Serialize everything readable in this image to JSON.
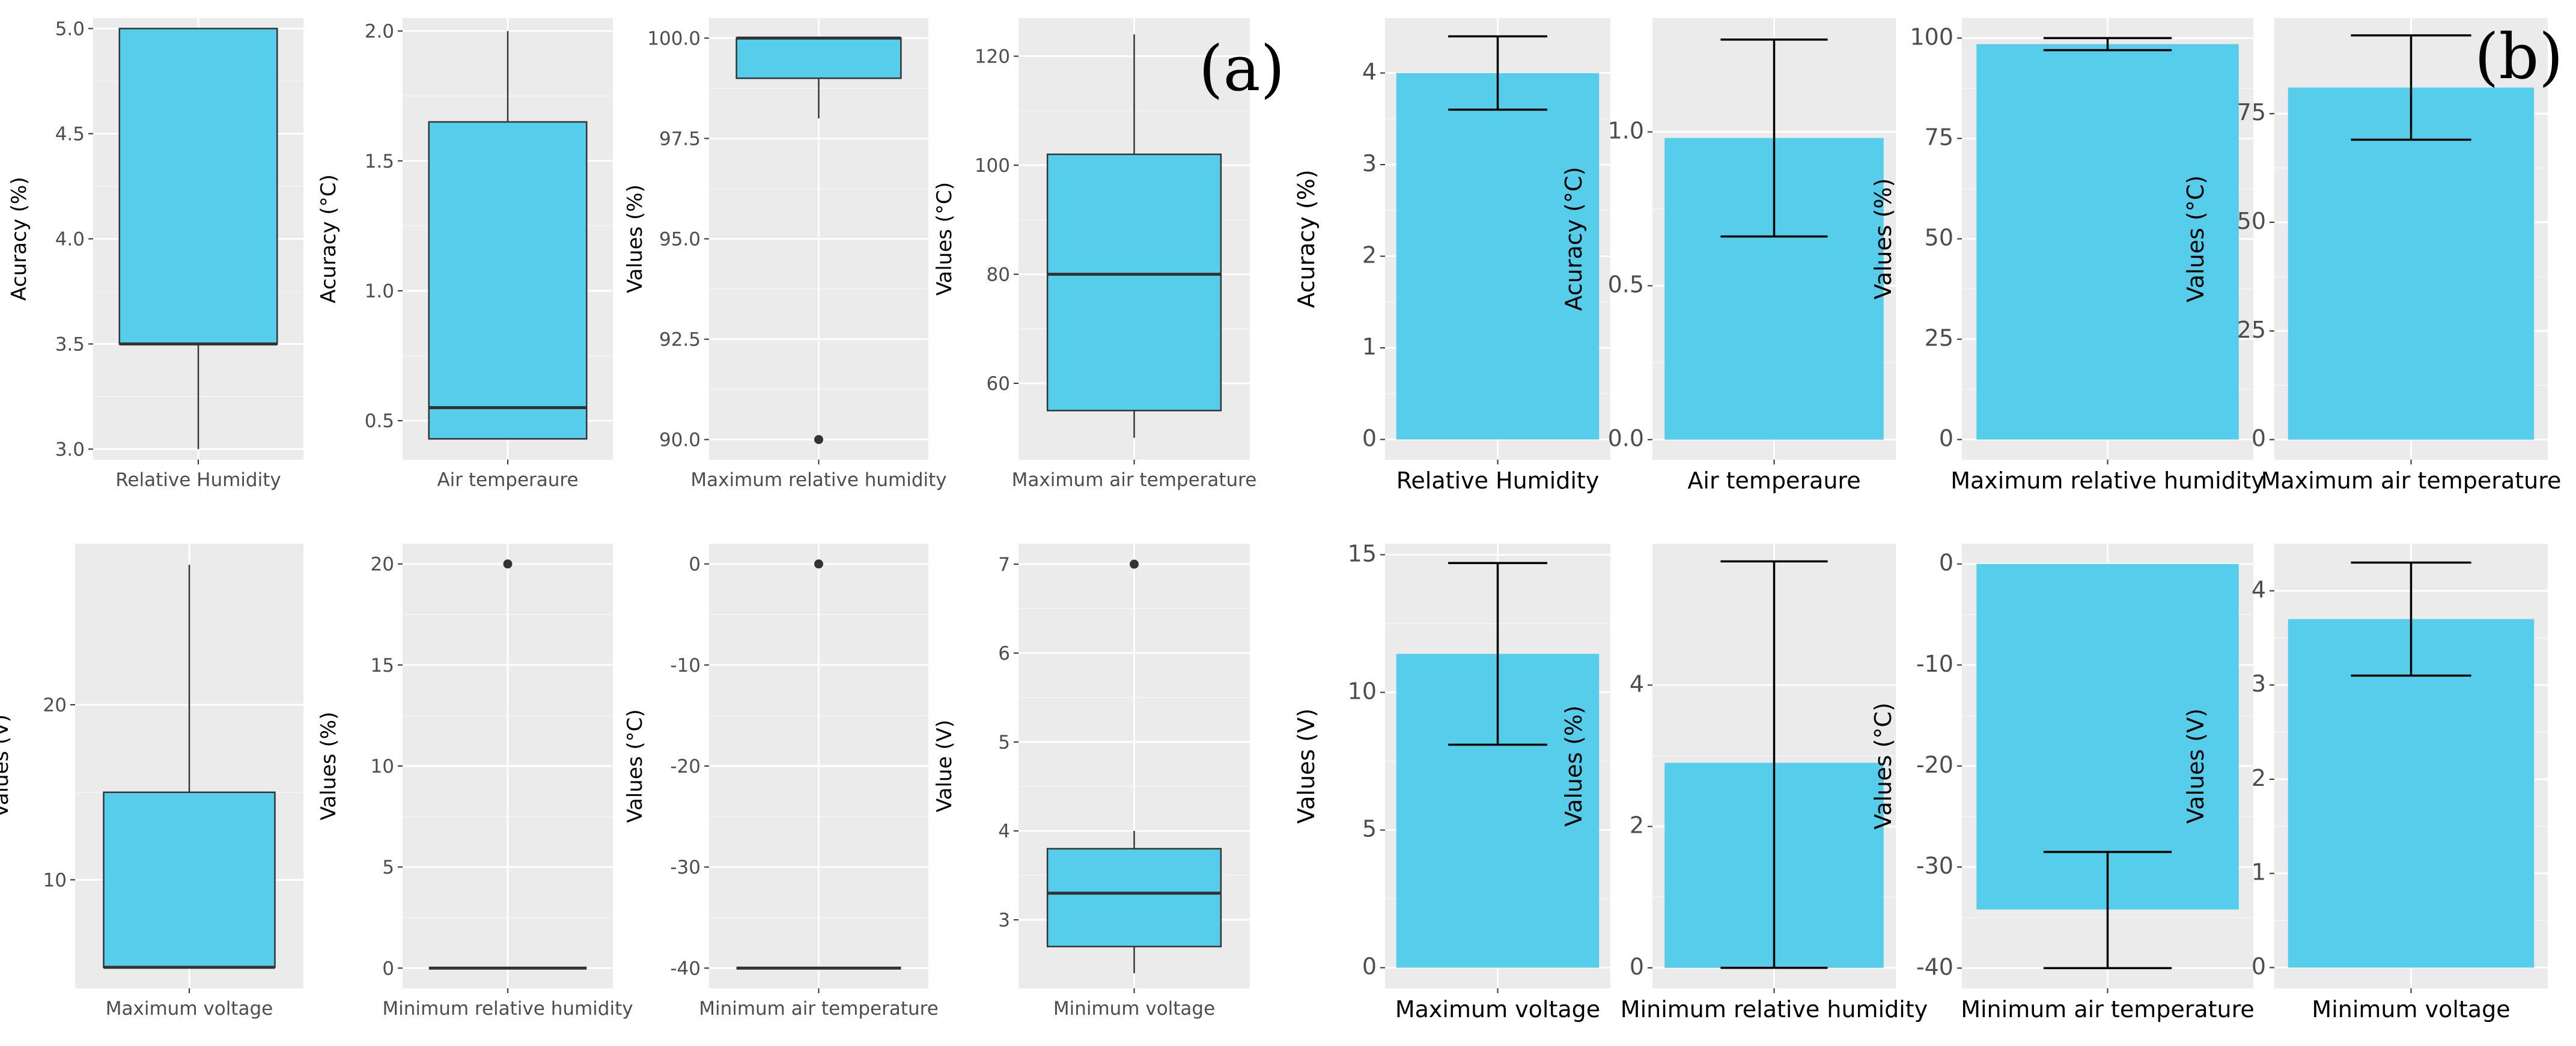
{
  "panel_labels": {
    "a": "(a)",
    "b": "(b)"
  },
  "colors": {
    "fill": "#56cdea",
    "outline": "#333333",
    "panel_bg": "#ebebeb",
    "grid": "#ffffff"
  },
  "chart_data": [
    {
      "id": "a1",
      "type": "box",
      "xlabel": "Relative Humidity",
      "ylabel": "Acuracy (%)",
      "ylim": [
        2.95,
        5.05
      ],
      "ticks": [
        3.0,
        3.5,
        4.0,
        4.5,
        5.0
      ],
      "tick_labels": [
        "3.0",
        "3.5",
        "4.0",
        "4.5",
        "5.0"
      ],
      "box": {
        "lower_whisker": 3.0,
        "q1": 3.5,
        "median": 3.5,
        "q3": 5.0,
        "upper_whisker": 5.0,
        "outliers": []
      }
    },
    {
      "id": "a2",
      "type": "box",
      "xlabel": "Air temperaure",
      "ylabel": "Acuracy (°C)",
      "ylim": [
        0.35,
        2.05
      ],
      "ticks": [
        0.5,
        1.0,
        1.5,
        2.0
      ],
      "tick_labels": [
        "0.5",
        "1.0",
        "1.5",
        "2.0"
      ],
      "box": {
        "lower_whisker": 0.43,
        "q1": 0.43,
        "median": 0.55,
        "q3": 1.65,
        "upper_whisker": 2.0,
        "outliers": []
      }
    },
    {
      "id": "a3",
      "type": "box",
      "xlabel": "Maximum relative humidity",
      "ylabel": "Values (%)",
      "ylim": [
        89.5,
        100.5
      ],
      "ticks": [
        90.0,
        92.5,
        95.0,
        97.5,
        100.0
      ],
      "tick_labels": [
        "90.0",
        "92.5",
        "95.0",
        "97.5",
        "100.0"
      ],
      "box": {
        "lower_whisker": 98.0,
        "q1": 99.0,
        "median": 100.0,
        "q3": 100.0,
        "upper_whisker": 100.0,
        "outliers": [
          90.0
        ]
      }
    },
    {
      "id": "a4",
      "type": "box",
      "xlabel": "Maximum air temperature",
      "ylabel": "Values (°C)",
      "ylim": [
        46,
        127
      ],
      "ticks": [
        60,
        80,
        100,
        120
      ],
      "tick_labels": [
        "60",
        "80",
        "100",
        "120"
      ],
      "box": {
        "lower_whisker": 50,
        "q1": 55,
        "median": 80,
        "q3": 102,
        "upper_whisker": 124,
        "outliers": []
      }
    },
    {
      "id": "a5",
      "type": "box",
      "xlabel": "Maximum voltage",
      "ylabel": "Values (V)",
      "ylim": [
        3.8,
        29.2
      ],
      "ticks": [
        10,
        20
      ],
      "tick_labels": [
        "10",
        "20"
      ],
      "box": {
        "lower_whisker": 5,
        "q1": 5,
        "median": 5,
        "q3": 15,
        "upper_whisker": 28,
        "outliers": []
      }
    },
    {
      "id": "a6",
      "type": "box",
      "xlabel": "Minimum relative humidity",
      "ylabel": "Values (%)",
      "ylim": [
        -1,
        21
      ],
      "ticks": [
        0,
        5,
        10,
        15,
        20
      ],
      "tick_labels": [
        "0",
        "5",
        "10",
        "15",
        "20"
      ],
      "box": {
        "lower_whisker": 0,
        "q1": 0,
        "median": 0,
        "q3": 0,
        "upper_whisker": 0,
        "outliers": [
          20
        ]
      }
    },
    {
      "id": "a7",
      "type": "box",
      "xlabel": "Minimum air temperature",
      "ylabel": "Values (°C)",
      "ylim": [
        -42,
        2
      ],
      "ticks": [
        -40,
        -30,
        -20,
        -10,
        0
      ],
      "tick_labels": [
        "-40",
        "-30",
        "-20",
        "-10",
        "0"
      ],
      "box": {
        "lower_whisker": -40,
        "q1": -40,
        "median": -40,
        "q3": -40,
        "upper_whisker": -40,
        "outliers": [
          0
        ]
      }
    },
    {
      "id": "a8",
      "type": "box",
      "xlabel": "Minimum voltage",
      "ylabel": "Value (V)",
      "ylim": [
        2.23,
        7.23
      ],
      "ticks": [
        3,
        4,
        5,
        6,
        7
      ],
      "tick_labels": [
        "3",
        "4",
        "5",
        "6",
        "7"
      ],
      "box": {
        "lower_whisker": 2.4,
        "q1": 2.7,
        "median": 3.3,
        "q3": 3.8,
        "upper_whisker": 4.0,
        "outliers": [
          7
        ]
      }
    },
    {
      "id": "b1",
      "type": "bar",
      "xlabel": "Relative Humidity",
      "ylabel": "Acuracy (%)",
      "ylim": [
        -0.22,
        4.6
      ],
      "ticks": [
        0,
        1,
        2,
        3,
        4
      ],
      "tick_labels": [
        "0",
        "1",
        "2",
        "3",
        "4"
      ],
      "bar": {
        "value": 4.0,
        "err_low": 3.6,
        "err_high": 4.4
      }
    },
    {
      "id": "b2",
      "type": "bar",
      "xlabel": "Air temperaure",
      "ylabel": "Acuracy (°C)",
      "ylim": [
        -0.065,
        1.37
      ],
      "ticks": [
        0.0,
        0.5,
        1.0
      ],
      "tick_labels": [
        "0.0",
        "0.5",
        "1.0"
      ],
      "bar": {
        "value": 0.98,
        "err_low": 0.66,
        "err_high": 1.3
      }
    },
    {
      "id": "b3",
      "type": "bar",
      "xlabel": "Maximum relative humidity",
      "ylabel": "Values (%)",
      "ylim": [
        -5,
        105
      ],
      "ticks": [
        0,
        25,
        50,
        75,
        100
      ],
      "tick_labels": [
        "0",
        "25",
        "50",
        "75",
        "100"
      ],
      "bar": {
        "value": 98.5,
        "err_low": 97,
        "err_high": 100
      }
    },
    {
      "id": "b4",
      "type": "bar",
      "xlabel": "Maximum air temperature",
      "ylabel": "Values (°C)",
      "ylim": [
        -4.6,
        97
      ],
      "ticks": [
        0,
        25,
        50,
        75
      ],
      "tick_labels": [
        "0",
        "25",
        "50",
        "75"
      ],
      "bar": {
        "value": 81,
        "err_low": 69,
        "err_high": 93
      }
    },
    {
      "id": "b5",
      "type": "bar",
      "xlabel": "Maximum voltage",
      "ylabel": "Values (V)",
      "ylim": [
        -0.75,
        15.4
      ],
      "ticks": [
        0,
        5,
        10,
        15
      ],
      "tick_labels": [
        "0",
        "5",
        "10",
        "15"
      ],
      "bar": {
        "value": 11.4,
        "err_low": 8.1,
        "err_high": 14.7
      }
    },
    {
      "id": "b6",
      "type": "bar",
      "xlabel": "Minimum relative humidity",
      "ylabel": "Values (%)",
      "ylim": [
        -0.29,
        6.0
      ],
      "ticks": [
        0,
        2,
        4
      ],
      "tick_labels": [
        "0",
        "2",
        "4"
      ],
      "bar": {
        "value": 2.9,
        "err_low": 0.0,
        "err_high": 5.75
      }
    },
    {
      "id": "b7",
      "type": "bar",
      "xlabel": "Minimum air temperature",
      "ylabel": "Values (°C)",
      "ylim": [
        -42,
        2
      ],
      "ticks": [
        -40,
        -30,
        -20,
        -10,
        0
      ],
      "tick_labels": [
        "-40",
        "-30",
        "-20",
        "-10",
        "0"
      ],
      "bar": {
        "value": -34.2,
        "err_low": -40,
        "err_high": -28.5
      }
    },
    {
      "id": "b8",
      "type": "bar",
      "xlabel": "Minimum voltage",
      "ylabel": "Values (V)",
      "ylim": [
        -0.22,
        4.5
      ],
      "ticks": [
        0,
        1,
        2,
        3,
        4
      ],
      "tick_labels": [
        "0",
        "1",
        "2",
        "3",
        "4"
      ],
      "bar": {
        "value": 3.7,
        "err_low": 3.1,
        "err_high": 4.3
      }
    }
  ]
}
